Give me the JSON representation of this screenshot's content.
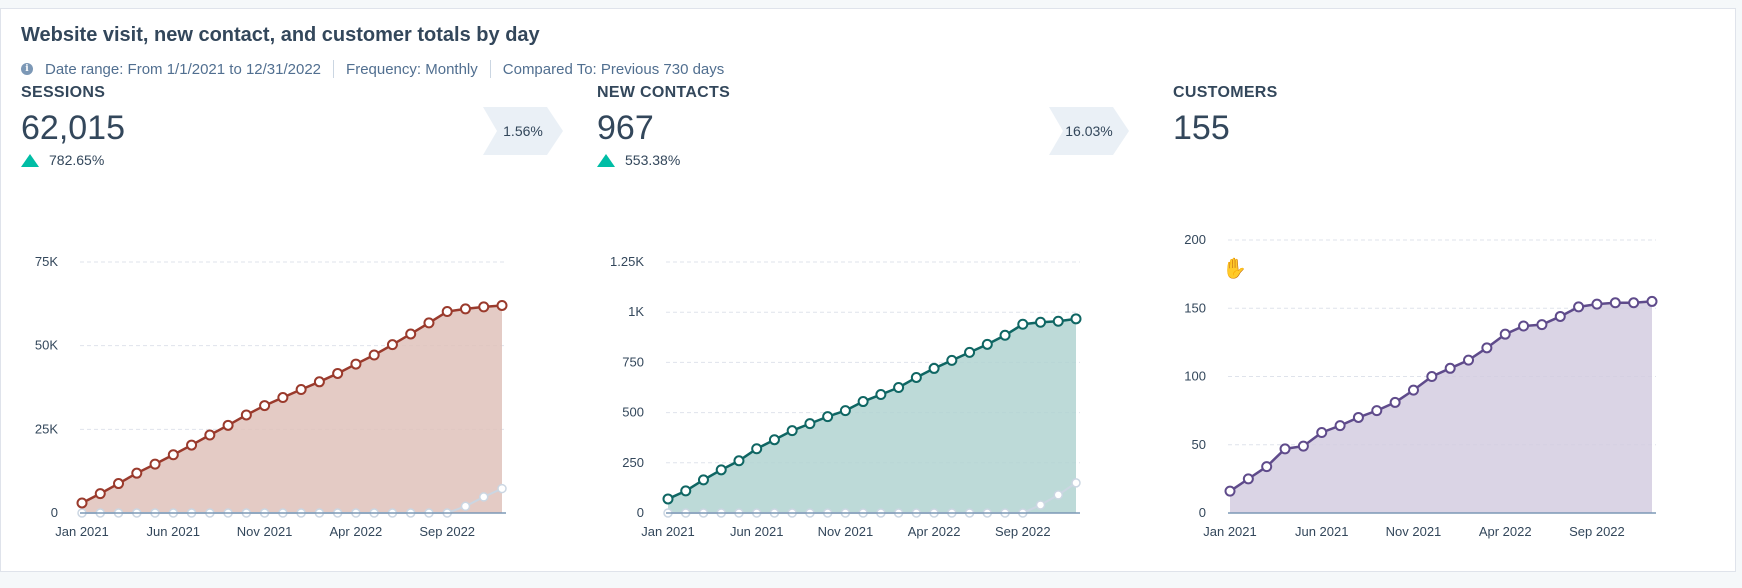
{
  "report": {
    "title": "Website visit, new contact, and customer totals by day",
    "meta": {
      "date_range": "Date range: From 1/1/2021 to 12/31/2022",
      "frequency": "Frequency: Monthly",
      "compared_to": "Compared To: Previous 730 days"
    }
  },
  "kpis": [
    {
      "label": "SESSIONS",
      "value": "62,015",
      "change": "782.65%"
    },
    {
      "label": "NEW CONTACTS",
      "value": "967",
      "change": "553.38%"
    },
    {
      "label": "CUSTOMERS",
      "value": "155",
      "change": ""
    }
  ],
  "conversions": [
    "1.56%",
    "16.03%"
  ],
  "colors": {
    "sessions": "#9a3a2c",
    "sessions_fill": "#dfc2bb",
    "contacts": "#0f6663",
    "contacts_fill": "#b2d3d1",
    "customers": "#5f4b8b",
    "customers_fill": "#d3cde0",
    "previous": "#cbd6e2",
    "grid": "#dfe3eb",
    "axis": "#7c98b6"
  },
  "chart_data": [
    {
      "type": "area",
      "series": [
        {
          "values": [
            3000,
            5800,
            8800,
            11900,
            14600,
            17400,
            20300,
            23300,
            26200,
            29300,
            32100,
            34500,
            36900,
            39200,
            41700,
            44500,
            47200,
            50300,
            53500,
            56800,
            60200,
            61000,
            61600,
            62015
          ]
        },
        {
          "values": [
            0,
            0,
            0,
            0,
            0,
            0,
            0,
            0,
            0,
            0,
            0,
            0,
            0,
            0,
            0,
            0,
            0,
            0,
            0,
            0,
            0,
            2000,
            4800,
            7300
          ]
        }
      ],
      "x_ticks": [
        {
          "i": 0,
          "label": "Jan 2021"
        },
        {
          "i": 5,
          "label": "Jun 2021"
        },
        {
          "i": 10,
          "label": "Nov 2021"
        },
        {
          "i": 15,
          "label": "Apr 2022"
        },
        {
          "i": 20,
          "label": "Sep 2022"
        }
      ],
      "y_ticks": [
        {
          "v": 0,
          "label": "0"
        },
        {
          "v": 25000,
          "label": "25K"
        },
        {
          "v": 50000,
          "label": "50K"
        },
        {
          "v": 75000,
          "label": "75K"
        }
      ],
      "ylim": [
        0,
        75000
      ]
    },
    {
      "type": "area",
      "series": [
        {
          "values": [
            70,
            110,
            165,
            215,
            260,
            320,
            365,
            410,
            445,
            480,
            510,
            555,
            590,
            625,
            675,
            720,
            760,
            800,
            840,
            885,
            940,
            950,
            955,
            967
          ]
        },
        {
          "values": [
            0,
            0,
            0,
            0,
            0,
            0,
            0,
            0,
            0,
            0,
            0,
            0,
            0,
            0,
            0,
            0,
            0,
            0,
            0,
            0,
            0,
            40,
            90,
            150
          ]
        }
      ],
      "x_ticks": [
        {
          "i": 0,
          "label": "Jan 2021"
        },
        {
          "i": 5,
          "label": "Jun 2021"
        },
        {
          "i": 10,
          "label": "Nov 2021"
        },
        {
          "i": 15,
          "label": "Apr 2022"
        },
        {
          "i": 20,
          "label": "Sep 2022"
        }
      ],
      "y_ticks": [
        {
          "v": 0,
          "label": "0"
        },
        {
          "v": 250,
          "label": "250"
        },
        {
          "v": 500,
          "label": "500"
        },
        {
          "v": 750,
          "label": "750"
        },
        {
          "v": 1000,
          "label": "1K"
        },
        {
          "v": 1250,
          "label": "1.25K"
        }
      ],
      "ylim": [
        0,
        1250
      ]
    },
    {
      "type": "area",
      "series": [
        {
          "values": [
            16,
            25,
            34,
            47,
            49,
            59,
            64,
            70,
            75,
            81,
            90,
            100,
            106,
            112,
            121,
            131,
            137,
            138,
            144,
            151,
            153,
            154,
            154,
            155
          ]
        }
      ],
      "x_ticks": [
        {
          "i": 0,
          "label": "Jan 2021"
        },
        {
          "i": 5,
          "label": "Jun 2021"
        },
        {
          "i": 10,
          "label": "Nov 2021"
        },
        {
          "i": 15,
          "label": "Apr 2022"
        },
        {
          "i": 20,
          "label": "Sep 2022"
        }
      ],
      "y_ticks": [
        {
          "v": 0,
          "label": "0"
        },
        {
          "v": 50,
          "label": "50"
        },
        {
          "v": 100,
          "label": "100"
        },
        {
          "v": 150,
          "label": "150"
        },
        {
          "v": 200,
          "label": "200"
        }
      ],
      "ylim": [
        0,
        200
      ]
    }
  ]
}
